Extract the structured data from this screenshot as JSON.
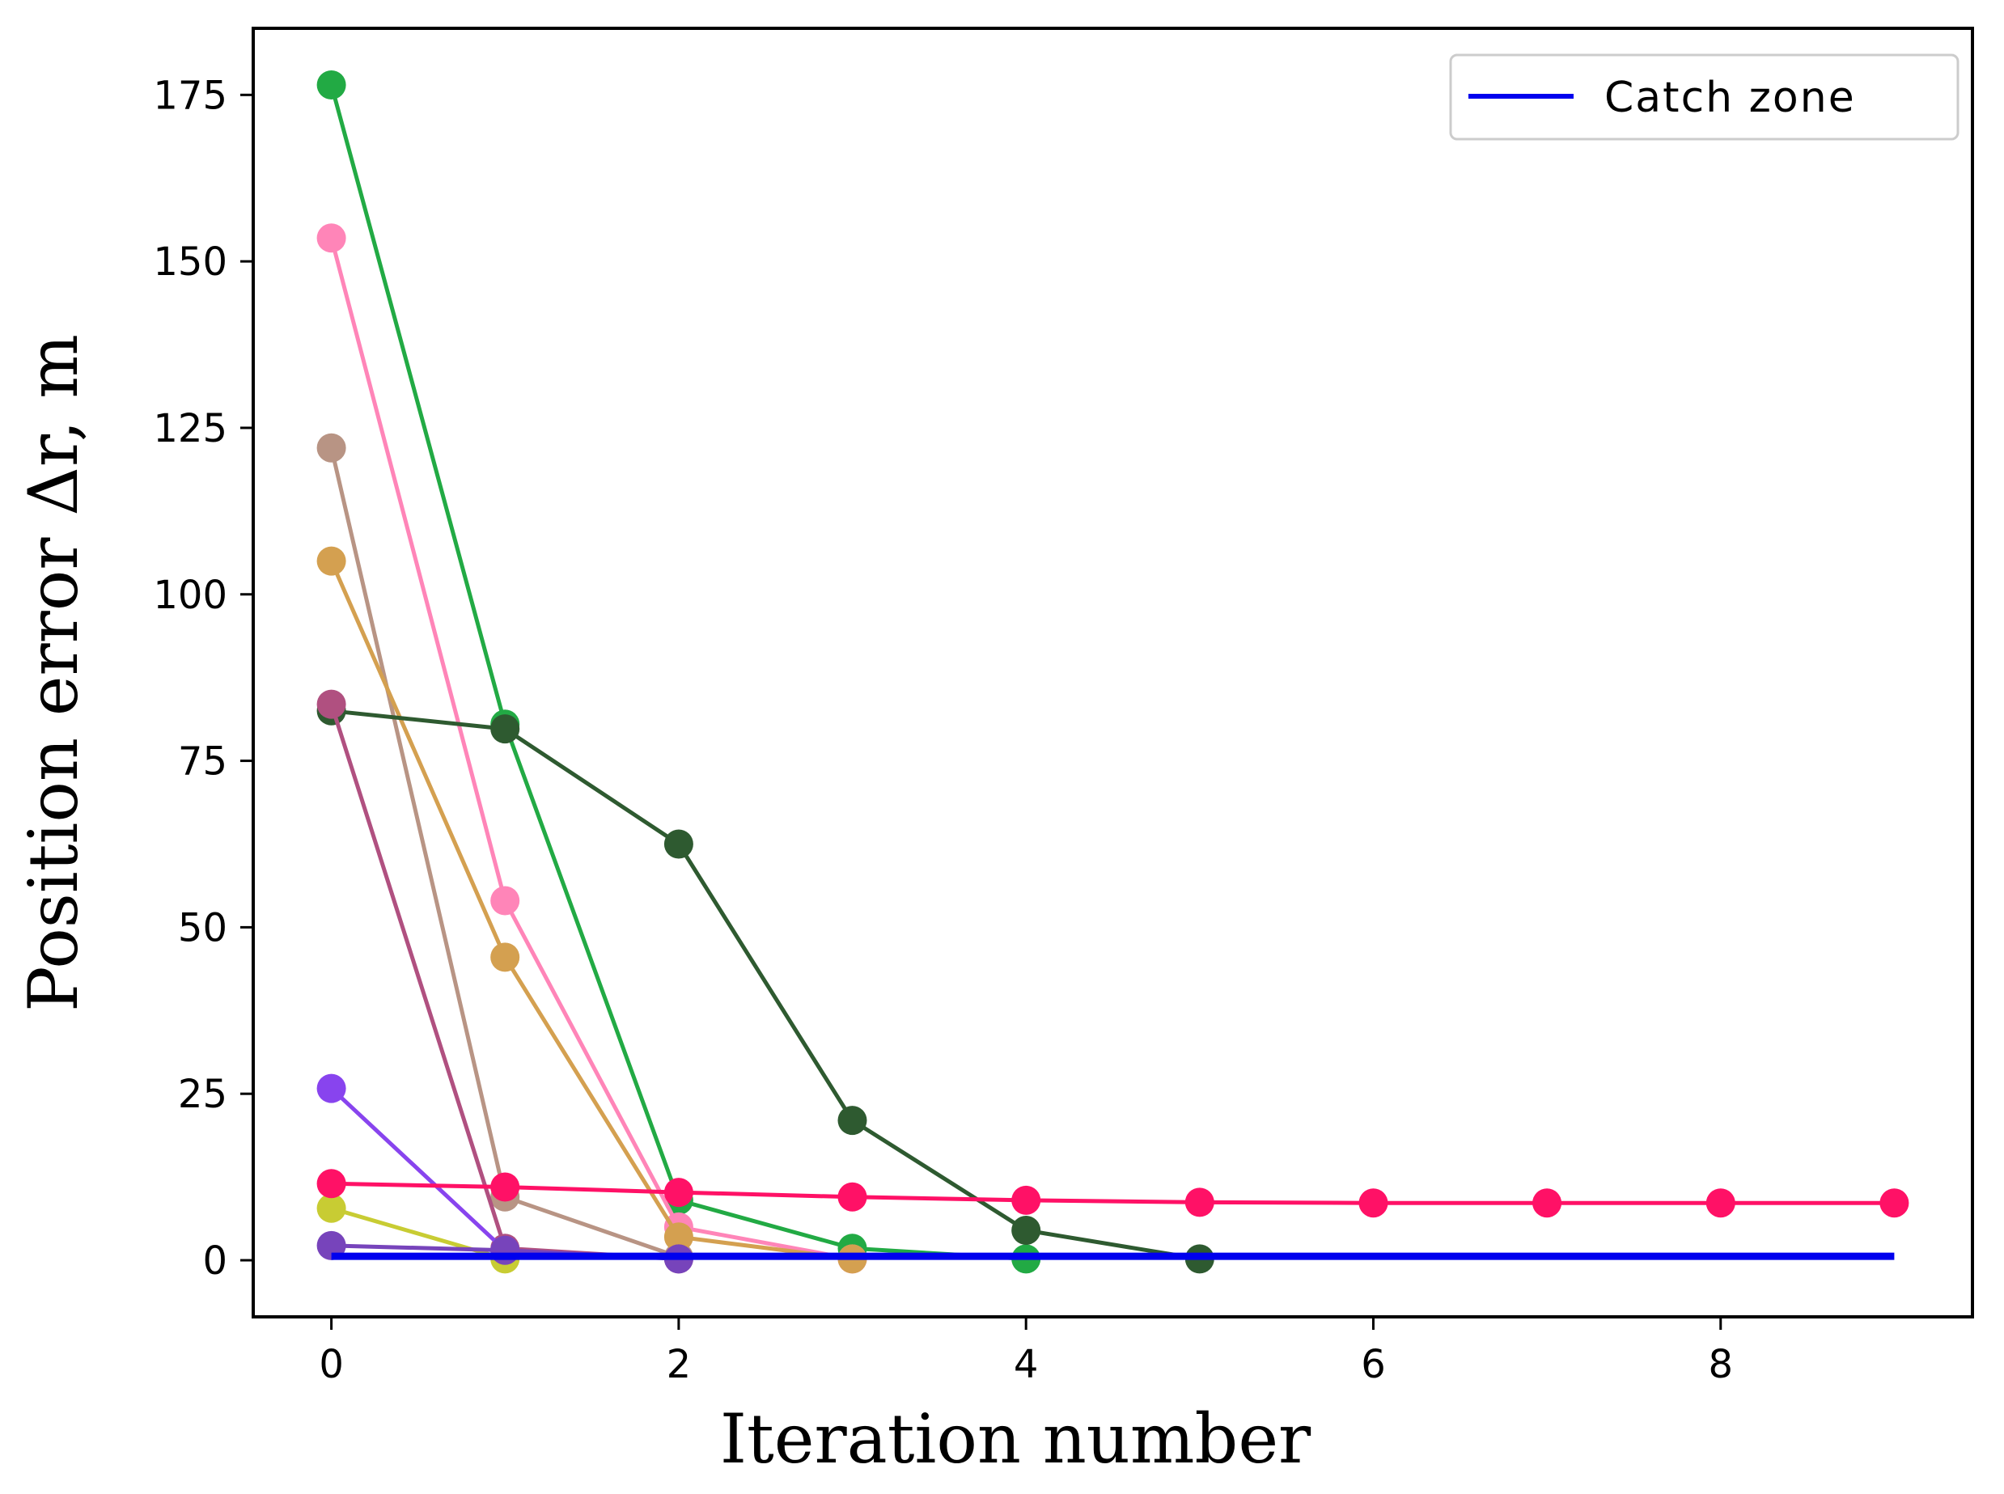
{
  "chart_data": {
    "type": "line",
    "title": "",
    "xlabel": "Iteration number",
    "ylabel": "Position error Δr, m",
    "xlim": [
      -0.45,
      9.45
    ],
    "ylim": [
      -8.5,
      185
    ],
    "xticks": [
      0,
      2,
      4,
      6,
      8
    ],
    "yticks": [
      0,
      25,
      50,
      75,
      100,
      125,
      150,
      175
    ],
    "grid": false,
    "legend": {
      "position": "top-right",
      "entries": [
        {
          "label": "Catch zone",
          "color": "#0000ee"
        }
      ]
    },
    "series": [
      {
        "name": "green",
        "color": "#22aa44",
        "x": [
          0,
          1,
          2,
          3,
          4
        ],
        "y": [
          176.5,
          80.5,
          9,
          1.8,
          0.2
        ]
      },
      {
        "name": "pink",
        "color": "#ff85b8",
        "x": [
          0,
          1,
          2,
          3
        ],
        "y": [
          153.5,
          54,
          5,
          0.2
        ]
      },
      {
        "name": "tan",
        "color": "#b89484",
        "x": [
          0,
          1,
          2
        ],
        "y": [
          122,
          9.5,
          0.5
        ]
      },
      {
        "name": "gold",
        "color": "#d4a050",
        "x": [
          0,
          1,
          2,
          3
        ],
        "y": [
          105,
          45.5,
          3.5,
          0.2
        ]
      },
      {
        "name": "dark-green",
        "color": "#2e5a30",
        "x": [
          0,
          1,
          2,
          3,
          4,
          5
        ],
        "y": [
          82.5,
          79.8,
          62.5,
          21,
          4.5,
          0.2
        ]
      },
      {
        "name": "mauve",
        "color": "#b05080",
        "x": [
          0,
          1,
          2
        ],
        "y": [
          83.5,
          1.8,
          0.2
        ]
      },
      {
        "name": "violet",
        "color": "#8844ee",
        "x": [
          0,
          1
        ],
        "y": [
          25.8,
          1.5
        ]
      },
      {
        "name": "yellow-green",
        "color": "#c8cc33",
        "x": [
          0,
          1
        ],
        "y": [
          7.8,
          0.2
        ]
      },
      {
        "name": "purple",
        "color": "#7744bb",
        "x": [
          0,
          1,
          2
        ],
        "y": [
          2.2,
          1.5,
          0.2
        ]
      },
      {
        "name": "red",
        "color": "#ff1166",
        "x": [
          0,
          1,
          2,
          3,
          4,
          5,
          6,
          7,
          8,
          9
        ],
        "y": [
          11.5,
          11,
          10.2,
          9.5,
          9.0,
          8.7,
          8.6,
          8.6,
          8.6,
          8.6
        ]
      }
    ],
    "reference_line": {
      "name": "Catch zone",
      "color": "#0000ee",
      "x": [
        0,
        9
      ],
      "y": [
        0.6,
        0.6
      ]
    }
  }
}
